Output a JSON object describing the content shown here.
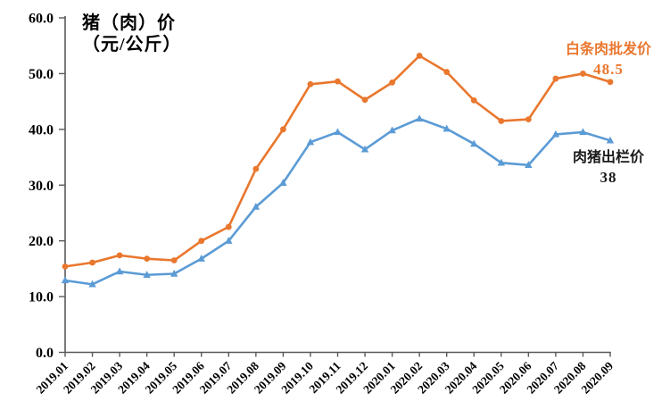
{
  "chart": {
    "title_line1": "猪（肉）价",
    "title_line2": "（元/公斤）",
    "annotations": {
      "wholesale_label": "白条肉批发价",
      "wholesale_value": "48.5",
      "live_label": "肉猪出栏价",
      "live_value": "38"
    }
  },
  "chart_data": {
    "type": "line",
    "title": "猪（肉）价（元/公斤）",
    "categories": [
      "2019.01",
      "2019.02",
      "2019.03",
      "2019.04",
      "2019.05",
      "2019.06",
      "2019.07",
      "2019.08",
      "2019.09",
      "2019.10",
      "2019.11",
      "2019.12",
      "2020.01",
      "2020.02",
      "2020.03",
      "2020.04",
      "2020.05",
      "2020.06",
      "2020.07",
      "2020.08",
      "2020.09"
    ],
    "series": [
      {
        "name": "白条肉批发价",
        "color": "#E9772E",
        "marker": "circle",
        "values": [
          15.4,
          16.1,
          17.4,
          16.8,
          16.5,
          20.0,
          22.5,
          32.9,
          40.0,
          48.1,
          48.6,
          45.3,
          48.4,
          53.2,
          50.3,
          45.2,
          41.5,
          41.8,
          49.1,
          50.0,
          48.5
        ]
      },
      {
        "name": "肉猪出栏价",
        "color": "#5B9BD5",
        "marker": "triangle",
        "values": [
          12.9,
          12.2,
          14.5,
          13.9,
          14.1,
          16.8,
          20.0,
          26.1,
          30.4,
          37.7,
          39.5,
          36.4,
          39.8,
          41.9,
          40.1,
          37.4,
          34.0,
          33.6,
          39.1,
          39.5,
          38.0
        ]
      }
    ],
    "ylim": [
      0,
      60
    ],
    "y_tick_step": 10,
    "y_tick_labels": [
      "0.0",
      "10.0",
      "20.0",
      "30.0",
      "40.0",
      "50.0",
      "60.0"
    ],
    "grid": false,
    "legend_position": "inline-annotations",
    "axis_color": "#595959",
    "text_color": "#000000"
  }
}
